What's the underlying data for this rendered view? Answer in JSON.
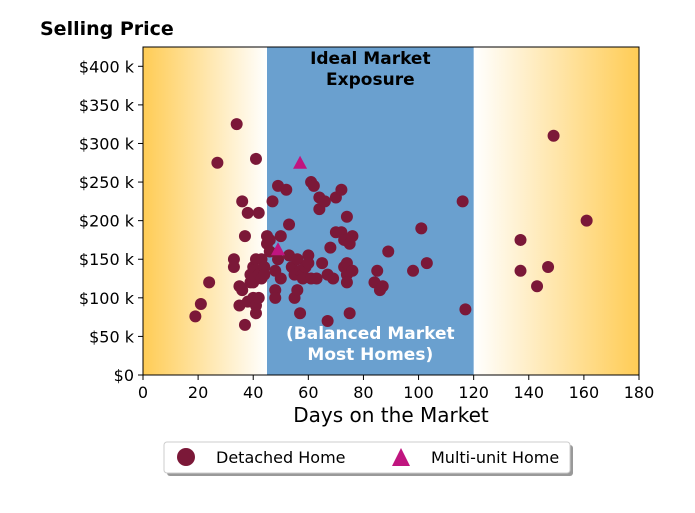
{
  "chart_data": {
    "type": "scatter",
    "title": "Selling Price",
    "xlabel": "Days on the Market",
    "ylabel": "",
    "xlim": [
      0,
      180
    ],
    "ylim": [
      0,
      425000
    ],
    "x_ticks": [
      0,
      20,
      40,
      60,
      80,
      100,
      120,
      140,
      160,
      180
    ],
    "x_tick_labels": [
      "0",
      "20",
      "40",
      "60",
      "80",
      "100",
      "120",
      "140",
      "160",
      "180"
    ],
    "y_ticks": [
      0,
      50000,
      100000,
      150000,
      200000,
      250000,
      300000,
      350000,
      400000
    ],
    "y_tick_labels": [
      "$0",
      "$50 k",
      "$100 k",
      "$150 k",
      "$200 k",
      "$250 k",
      "$300 k",
      "$350 k",
      "$400 k"
    ],
    "grid": false,
    "legend_position": "bottom-center",
    "band": {
      "x_start": 45,
      "x_end": 120,
      "top_label_line1": "Ideal Market",
      "top_label_line2": "Exposure",
      "bottom_label_line1": "(Balanced Market",
      "bottom_label_line2": "Most Homes)",
      "color": "#6aa0cf"
    },
    "gradient_color": "#ffcc55",
    "series": [
      {
        "name": "Detached Home",
        "marker": "circle",
        "color": "#7b1838",
        "x": [
          19,
          21,
          24,
          27,
          33,
          33,
          34,
          35,
          35,
          36,
          36,
          37,
          37,
          38,
          38,
          39,
          39,
          40,
          40,
          40,
          41,
          41,
          41,
          41,
          42,
          42,
          42,
          43,
          43,
          44,
          44,
          45,
          45,
          46,
          46,
          47,
          48,
          48,
          48,
          49,
          49,
          50,
          50,
          52,
          53,
          53,
          54,
          55,
          55,
          56,
          56,
          57,
          57,
          58,
          58,
          59,
          60,
          60,
          61,
          61,
          62,
          63,
          64,
          64,
          65,
          66,
          67,
          67,
          68,
          69,
          70,
          70,
          72,
          72,
          73,
          73,
          74,
          74,
          74,
          74,
          75,
          75,
          76,
          76,
          84,
          85,
          86,
          87,
          89,
          98,
          101,
          103,
          116,
          117,
          137,
          137,
          143,
          147,
          149,
          161
        ],
        "y": [
          76000,
          92000,
          120000,
          275000,
          150000,
          140000,
          325000,
          90000,
          115000,
          110000,
          225000,
          65000,
          180000,
          95000,
          210000,
          120000,
          130000,
          140000,
          120000,
          100000,
          150000,
          280000,
          90000,
          80000,
          210000,
          100000,
          130000,
          150000,
          125000,
          140000,
          130000,
          180000,
          170000,
          175000,
          160000,
          225000,
          135000,
          110000,
          100000,
          245000,
          150000,
          125000,
          180000,
          240000,
          195000,
          155000,
          140000,
          100000,
          130000,
          150000,
          110000,
          80000,
          135000,
          130000,
          125000,
          140000,
          155000,
          145000,
          250000,
          125000,
          245000,
          125000,
          215000,
          230000,
          145000,
          225000,
          130000,
          70000,
          165000,
          125000,
          185000,
          230000,
          240000,
          185000,
          175000,
          140000,
          130000,
          205000,
          120000,
          145000,
          80000,
          170000,
          180000,
          135000,
          120000,
          135000,
          110000,
          115000,
          160000,
          135000,
          190000,
          145000,
          225000,
          85000,
          175000,
          135000,
          115000,
          140000,
          310000,
          200000
        ]
      },
      {
        "name": "Multi-unit Home",
        "marker": "triangle",
        "color": "#c0157f",
        "x": [
          49,
          57
        ],
        "y": [
          163000,
          275000
        ]
      }
    ]
  }
}
